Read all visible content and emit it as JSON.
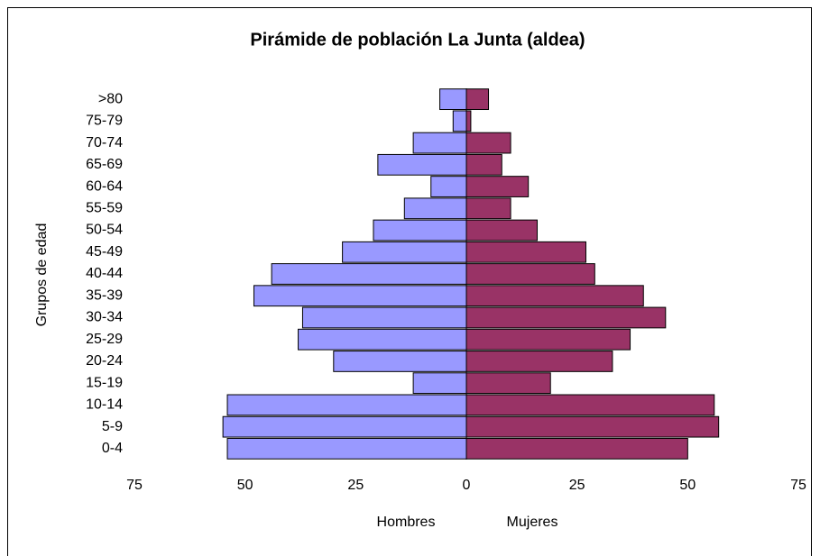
{
  "chart_data": {
    "type": "pyramid",
    "title": "Pirámide de población La Junta (aldea)",
    "y_label": "Grupos de edad",
    "categories": [
      "0-4",
      "5-9",
      "10-14",
      "15-19",
      "20-24",
      "25-29",
      "30-34",
      "35-39",
      "40-44",
      "45-49",
      "50-54",
      "55-59",
      "60-64",
      "65-69",
      "70-74",
      "75-79",
      ">80"
    ],
    "series": [
      {
        "name": "Hombres",
        "color": "#9999ff",
        "values": [
          -54,
          -55,
          -54,
          -12,
          -30,
          -38,
          -37,
          -48,
          -44,
          -28,
          -21,
          -14,
          -8,
          -20,
          -12,
          -3,
          -6
        ]
      },
      {
        "name": "Mujeres",
        "color": "#993366",
        "values": [
          50,
          57,
          56,
          19,
          33,
          37,
          45,
          40,
          29,
          27,
          16,
          10,
          14,
          8,
          10,
          1,
          5
        ]
      }
    ],
    "xlim": [
      -75,
      75
    ],
    "xticks": [
      {
        "value": -75,
        "label": "75"
      },
      {
        "value": -50,
        "label": "50"
      },
      {
        "value": -25,
        "label": "25"
      },
      0,
      25,
      50,
      75
    ]
  }
}
